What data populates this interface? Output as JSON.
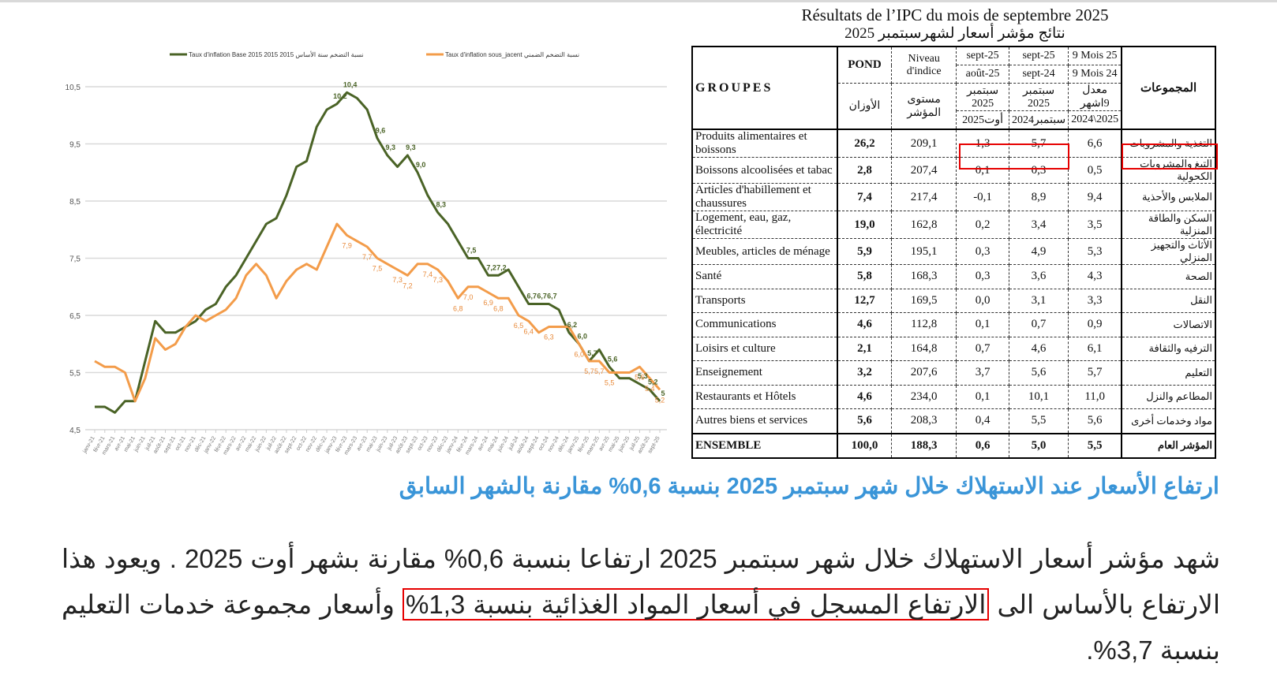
{
  "chart": {
    "legend": [
      {
        "label_ar": "نسبة التضخم سنة الأساس 2015",
        "label_fr": "Taux d'inflation Base  2015 2015",
        "color": "#4a6326"
      },
      {
        "label_ar": "نسبة التضخم الضمني",
        "label_fr": "Taux d'inflation sous_jacent",
        "color": "#f39c4a"
      }
    ]
  },
  "chart_data": {
    "type": "line",
    "title": "",
    "xlabel": "",
    "ylabel": "",
    "ylim": [
      4.5,
      10.5
    ],
    "yticks": [
      "4,5",
      "5,5",
      "6,5",
      "7,5",
      "8,5",
      "9,5",
      "10,5"
    ],
    "grid": true,
    "legend_position": "top",
    "categories": [
      "janv-21",
      "févr-21",
      "mars-21",
      "avr-21",
      "mai-21",
      "juin-21",
      "juil-21",
      "août-21",
      "sept-21",
      "oct-21",
      "nov-21",
      "déc-21",
      "janv-22",
      "févr-22",
      "mars-22",
      "avr-22",
      "mai-22",
      "juin-22",
      "juil-22",
      "août-22",
      "sept-22",
      "oct-22",
      "nov-22",
      "déc-22",
      "janv-23",
      "févr-23",
      "mars-23",
      "avr-23",
      "mai-23",
      "juin-23",
      "juil-23",
      "août-23",
      "sept-23",
      "oct-23",
      "nov-23",
      "déc-23",
      "janv-24",
      "févr-24",
      "mars-24",
      "avr-24",
      "mai-24",
      "juin-24",
      "juil-24",
      "août-24",
      "sept-24",
      "oct-24",
      "nov-24",
      "déc-24",
      "janv-25",
      "févr-25",
      "mars-25",
      "avr-25",
      "mai-25",
      "juin-25",
      "juil-25",
      "août-25",
      "sept-25"
    ],
    "series": [
      {
        "name": "Taux d'inflation Base 2015",
        "color": "#4a6326",
        "values": [
          4.9,
          4.9,
          4.8,
          5.0,
          5.0,
          5.7,
          6.4,
          6.2,
          6.2,
          6.3,
          6.4,
          6.6,
          6.7,
          7.0,
          7.2,
          7.5,
          7.8,
          8.1,
          8.2,
          8.6,
          9.1,
          9.2,
          9.8,
          10.1,
          10.2,
          10.4,
          10.3,
          10.1,
          9.6,
          9.3,
          9.1,
          9.3,
          9.0,
          8.6,
          8.3,
          8.1,
          7.8,
          7.5,
          7.5,
          7.2,
          7.2,
          7.3,
          7.0,
          6.7,
          6.7,
          6.7,
          6.6,
          6.2,
          6.0,
          5.7,
          5.9,
          5.6,
          5.4,
          5.4,
          5.3,
          5.2,
          5.0
        ]
      },
      {
        "name": "Taux d'inflation sous_jacent",
        "color": "#f39c4a",
        "values": [
          5.7,
          5.6,
          5.6,
          5.5,
          5.0,
          5.4,
          6.1,
          5.9,
          6.0,
          6.3,
          6.5,
          6.4,
          6.5,
          6.6,
          6.8,
          7.2,
          7.4,
          7.2,
          6.8,
          7.1,
          7.3,
          7.4,
          7.3,
          7.7,
          8.1,
          7.9,
          7.8,
          7.7,
          7.5,
          7.4,
          7.3,
          7.2,
          7.4,
          7.4,
          7.3,
          7.1,
          6.8,
          7.0,
          7.0,
          6.9,
          6.8,
          6.8,
          6.5,
          6.4,
          6.2,
          6.3,
          6.3,
          6.3,
          6.0,
          5.7,
          5.7,
          5.5,
          5.5,
          5.5,
          5.6,
          5.4,
          5.2
        ]
      }
    ],
    "annotations": [
      {
        "series": 0,
        "index": 24,
        "text": "10,2"
      },
      {
        "series": 0,
        "index": 25,
        "text": "10,4"
      },
      {
        "series": 0,
        "index": 28,
        "text": "9,6"
      },
      {
        "series": 0,
        "index": 29,
        "text": "9,3"
      },
      {
        "series": 0,
        "index": 31,
        "text": "9,3"
      },
      {
        "series": 0,
        "index": 32,
        "text": "9,0"
      },
      {
        "series": 0,
        "index": 34,
        "text": "8,3"
      },
      {
        "series": 0,
        "index": 37,
        "text": "7,5"
      },
      {
        "series": 0,
        "index": 39,
        "text": "7,2"
      },
      {
        "series": 0,
        "index": 40,
        "text": "7,2"
      },
      {
        "series": 0,
        "index": 43,
        "text": "6,7"
      },
      {
        "series": 0,
        "index": 44,
        "text": "6,7"
      },
      {
        "series": 0,
        "index": 45,
        "text": "6,7"
      },
      {
        "series": 0,
        "index": 47,
        "text": "6,2"
      },
      {
        "series": 0,
        "index": 48,
        "text": "6,0"
      },
      {
        "series": 0,
        "index": 49,
        "text": "5,7"
      },
      {
        "series": 0,
        "index": 51,
        "text": "5,6"
      },
      {
        "series": 0,
        "index": 54,
        "text": "5,3"
      },
      {
        "series": 0,
        "index": 55,
        "text": "5,2"
      },
      {
        "series": 0,
        "index": 56,
        "text": "5"
      },
      {
        "series": 1,
        "index": 25,
        "text": "7,9"
      },
      {
        "series": 1,
        "index": 27,
        "text": "7,7"
      },
      {
        "series": 1,
        "index": 28,
        "text": "7,5"
      },
      {
        "series": 1,
        "index": 30,
        "text": "7,3"
      },
      {
        "series": 1,
        "index": 31,
        "text": "7,2"
      },
      {
        "series": 1,
        "index": 33,
        "text": "7,4"
      },
      {
        "series": 1,
        "index": 34,
        "text": "7,3"
      },
      {
        "series": 1,
        "index": 36,
        "text": "6,8"
      },
      {
        "series": 1,
        "index": 37,
        "text": "7,0"
      },
      {
        "series": 1,
        "index": 39,
        "text": "6,9"
      },
      {
        "series": 1,
        "index": 40,
        "text": "6,8"
      },
      {
        "series": 1,
        "index": 42,
        "text": "6,5"
      },
      {
        "series": 1,
        "index": 43,
        "text": "6,4"
      },
      {
        "series": 1,
        "index": 45,
        "text": "6,3"
      },
      {
        "series": 1,
        "index": 48,
        "text": "6,0"
      },
      {
        "series": 1,
        "index": 49,
        "text": "5,7"
      },
      {
        "series": 1,
        "index": 50,
        "text": "5,7"
      },
      {
        "series": 1,
        "index": 51,
        "text": "5,5"
      },
      {
        "series": 1,
        "index": 54,
        "text": "5,6"
      },
      {
        "series": 1,
        "index": 55,
        "text": "5,4"
      },
      {
        "series": 1,
        "index": 56,
        "text": "5,2"
      }
    ]
  },
  "table": {
    "title_fr": "Résultats de l’IPC du mois de septembre 2025",
    "title_ar": "نتائج مؤشر أسعار لشهرسبتمبر 2025",
    "header": {
      "groupes": "GROUPES",
      "pond": "POND",
      "pond_ar": "الأوزان",
      "niveau": "Niveau d'indice",
      "niveau_ar": "مستوى المؤشر",
      "col1_top": "sept-25",
      "col1_bot": "août-25",
      "col1_ar_top": "سبتمبر 2025",
      "col1_ar_bot": "أوت2025",
      "col2_top": "sept-25",
      "col2_bot": "sept-24",
      "col2_ar_top": "سبتمبر 2025",
      "col2_ar_bot": "سبتمبر2024",
      "col3_top": "9 Mois 25",
      "col3_bot": "9 Mois 24",
      "col3_ar_top": "معدل 9اشهر",
      "col3_ar_bot": "2024\\2025",
      "groupes_ar": "المجموعات"
    },
    "rows": [
      {
        "fr": "Produits alimentaires et boissons",
        "pond": "26,2",
        "niveau": "209,1",
        "m": "1,3",
        "a": "5,7",
        "n": "6,6",
        "ar": "التغذية والمشروبات"
      },
      {
        "fr": "Boissons alcoolisées et tabac",
        "pond": "2,8",
        "niveau": "207,4",
        "m": "0,1",
        "a": "0,3",
        "n": "0,5",
        "ar": "التبغ والمشروبات الكحولية"
      },
      {
        "fr": "Articles d'habillement et chaussures",
        "pond": "7,4",
        "niveau": "217,4",
        "m": "-0,1",
        "a": "8,9",
        "n": "9,4",
        "ar": "الملابس والأحذية"
      },
      {
        "fr": "Logement, eau, gaz, électricité",
        "pond": "19,0",
        "niveau": "162,8",
        "m": "0,2",
        "a": "3,4",
        "n": "3,5",
        "ar": "السكن والطاقة المنزلية"
      },
      {
        "fr": "Meubles, articles de ménage",
        "pond": "5,9",
        "niveau": "195,1",
        "m": "0,3",
        "a": "4,9",
        "n": "5,3",
        "ar": "الأثاث والتجهيز المنزلي"
      },
      {
        "fr": "Santé",
        "pond": "5,8",
        "niveau": "168,3",
        "m": "0,3",
        "a": "3,6",
        "n": "4,3",
        "ar": "الصحة"
      },
      {
        "fr": "Transports",
        "pond": "12,7",
        "niveau": "169,5",
        "m": "0,0",
        "a": "3,1",
        "n": "3,3",
        "ar": "النقل"
      },
      {
        "fr": "Communications",
        "pond": "4,6",
        "niveau": "112,8",
        "m": "0,1",
        "a": "0,7",
        "n": "0,9",
        "ar": "الاتصالات"
      },
      {
        "fr": "Loisirs et culture",
        "pond": "2,1",
        "niveau": "164,8",
        "m": "0,7",
        "a": "4,6",
        "n": "6,1",
        "ar": "الترفيه والثقافة"
      },
      {
        "fr": "Enseignement",
        "pond": "3,2",
        "niveau": "207,6",
        "m": "3,7",
        "a": "5,6",
        "n": "5,7",
        "ar": "التعليم"
      },
      {
        "fr": "Restaurants et Hôtels",
        "pond": "4,6",
        "niveau": "234,0",
        "m": "0,1",
        "a": "10,1",
        "n": "11,0",
        "ar": "المطاعم والنزل"
      },
      {
        "fr": "Autres biens et services",
        "pond": "5,6",
        "niveau": "208,3",
        "m": "0,4",
        "a": "5,5",
        "n": "5,6",
        "ar": "مواد وخدمات أخرى"
      }
    ],
    "total": {
      "fr": "ENSEMBLE",
      "pond": "100,0",
      "niveau": "188,3",
      "m": "0,6",
      "a": "5,0",
      "n": "5,5",
      "ar": "المؤشر العام"
    },
    "highlight_color": "#e60000"
  },
  "article": {
    "headline": "ارتفاع الأسعار عند الاستهلاك خلال شهر سبتمبر 2025 بنسبة 0,6% مقارنة بالشهر السابق",
    "para_part1": "شهد مؤشر أسعار الاستهلاك خلال شهر سبتمبر 2025 ارتفاعا بنسبة 0,6% مقارنة بشهر أوت 2025 . ويعود هذا الارتفاع بالأساس الى ",
    "para_highlight": "الارتفاع المسجل في أسعار المواد الغذائية بنسبة 1,3%",
    "para_part2": " وأسعار مجموعة خدمات التعليم بنسبة 3,7%.",
    "headline_color": "#3a95d8"
  }
}
